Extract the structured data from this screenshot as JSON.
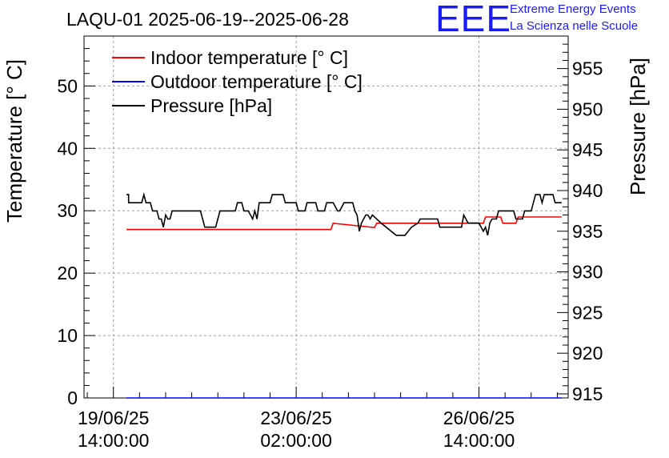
{
  "chart_data": {
    "type": "line",
    "title": "LAQU-01 2025-06-19--2025-06-28",
    "ylabel": "Temperature [° C]",
    "y2label": "Pressure [hPa]",
    "xlabel": "",
    "ylim": [
      0,
      58
    ],
    "y2lim": [
      914.5,
      959
    ],
    "xlim_hours": [
      -13.5,
      209
    ],
    "grid": true,
    "legend_position": "top-left",
    "x_ticks": [
      {
        "h": 0,
        "line1": "19/06/25",
        "line2": "14:00:00"
      },
      {
        "h": 84,
        "line1": "23/06/25",
        "line2": "02:00:00"
      },
      {
        "h": 168,
        "line1": "26/06/25",
        "line2": "14:00:00"
      }
    ],
    "y_ticks": [
      0,
      10,
      20,
      30,
      40,
      50
    ],
    "y2_ticks": [
      915,
      920,
      925,
      930,
      935,
      940,
      945,
      950,
      955
    ],
    "series": [
      {
        "name": "Indoor temperature [° C]",
        "axis": "left",
        "color": "#ff0000",
        "points": [
          [
            6,
            27
          ],
          [
            100,
            27
          ],
          [
            101,
            28
          ],
          [
            120,
            27.3
          ],
          [
            121,
            28
          ],
          [
            162,
            28
          ],
          [
            170,
            28
          ],
          [
            171,
            29
          ],
          [
            178,
            29
          ],
          [
            179,
            28
          ],
          [
            185,
            28
          ],
          [
            186,
            29
          ],
          [
            194,
            29
          ],
          [
            206,
            29
          ]
        ]
      },
      {
        "name": "Outdoor temperature [° C]",
        "axis": "left",
        "color": "#0000ff",
        "points": [
          [
            6,
            0
          ],
          [
            206,
            0
          ]
        ]
      },
      {
        "name": "Pressure [hPa]",
        "axis": "right",
        "color": "#000000",
        "points": [
          [
            6,
            939.5
          ],
          [
            7,
            939.5
          ],
          [
            7,
            938.5
          ],
          [
            13,
            938.5
          ],
          [
            14,
            939.5
          ],
          [
            15,
            938.5
          ],
          [
            17,
            938.5
          ],
          [
            18,
            937.5
          ],
          [
            20,
            937.5
          ],
          [
            21,
            936.5
          ],
          [
            22,
            936.5
          ],
          [
            23,
            935.5
          ],
          [
            24,
            937
          ],
          [
            25,
            936.5
          ],
          [
            26,
            936.5
          ],
          [
            27,
            937.5
          ],
          [
            40,
            937.5
          ],
          [
            41,
            936.5
          ],
          [
            42,
            935.5
          ],
          [
            47,
            935.5
          ],
          [
            48,
            936.5
          ],
          [
            49,
            937.5
          ],
          [
            56,
            937.5
          ],
          [
            57,
            938.5
          ],
          [
            59,
            938.5
          ],
          [
            60,
            937.5
          ],
          [
            62,
            937.5
          ],
          [
            63,
            937
          ],
          [
            64,
            936.5
          ],
          [
            65,
            937.5
          ],
          [
            66,
            936.5
          ],
          [
            67,
            938.5
          ],
          [
            72,
            938.5
          ],
          [
            73,
            939.5
          ],
          [
            78,
            939.5
          ],
          [
            79,
            938.5
          ],
          [
            84,
            938.5
          ],
          [
            85,
            937.5
          ],
          [
            88,
            937.5
          ],
          [
            89,
            938.5
          ],
          [
            93,
            938.5
          ],
          [
            94,
            937.5
          ],
          [
            97,
            937.5
          ],
          [
            98,
            938.5
          ],
          [
            100,
            938.5
          ],
          [
            101,
            938.5
          ],
          [
            102,
            938
          ],
          [
            103,
            937.5
          ],
          [
            104,
            937.5
          ],
          [
            106,
            938.5
          ],
          [
            110,
            938.5
          ],
          [
            111,
            937.5
          ],
          [
            112,
            937
          ],
          [
            113,
            935
          ],
          [
            114,
            936
          ],
          [
            115,
            936.5
          ],
          [
            116,
            937
          ],
          [
            117,
            937
          ],
          [
            118,
            936.5
          ],
          [
            119,
            937
          ],
          [
            123,
            936
          ],
          [
            130,
            934.5
          ],
          [
            134,
            934.5
          ],
          [
            137,
            935.5
          ],
          [
            140,
            936
          ],
          [
            141,
            936.5
          ],
          [
            149,
            936.5
          ],
          [
            150,
            935.5
          ],
          [
            155,
            935.5
          ],
          [
            156,
            935.5
          ],
          [
            160,
            935.5
          ],
          [
            161,
            937
          ],
          [
            162,
            936.5
          ],
          [
            163,
            936
          ],
          [
            168,
            936
          ],
          [
            169,
            935.5
          ],
          [
            170,
            935
          ],
          [
            171,
            935.5
          ],
          [
            172,
            934.5
          ],
          [
            173,
            936
          ],
          [
            174,
            936.5
          ],
          [
            176,
            936.5
          ],
          [
            177,
            937.5
          ],
          [
            184,
            937.5
          ],
          [
            185,
            936.5
          ],
          [
            188,
            936.5
          ],
          [
            189,
            937.5
          ],
          [
            192,
            937.5
          ],
          [
            193,
            938.5
          ],
          [
            194,
            939.5
          ],
          [
            196,
            939.5
          ],
          [
            197,
            938.5
          ],
          [
            198,
            939.5
          ],
          [
            202,
            939.5
          ],
          [
            203,
            938.5
          ],
          [
            206,
            938.5
          ]
        ]
      }
    ]
  },
  "logo": {
    "text": "EEE",
    "color": "#1a1aff"
  },
  "org": {
    "line1": "Extreme Energy Events",
    "line2": "La Scienza nelle Scuole"
  }
}
